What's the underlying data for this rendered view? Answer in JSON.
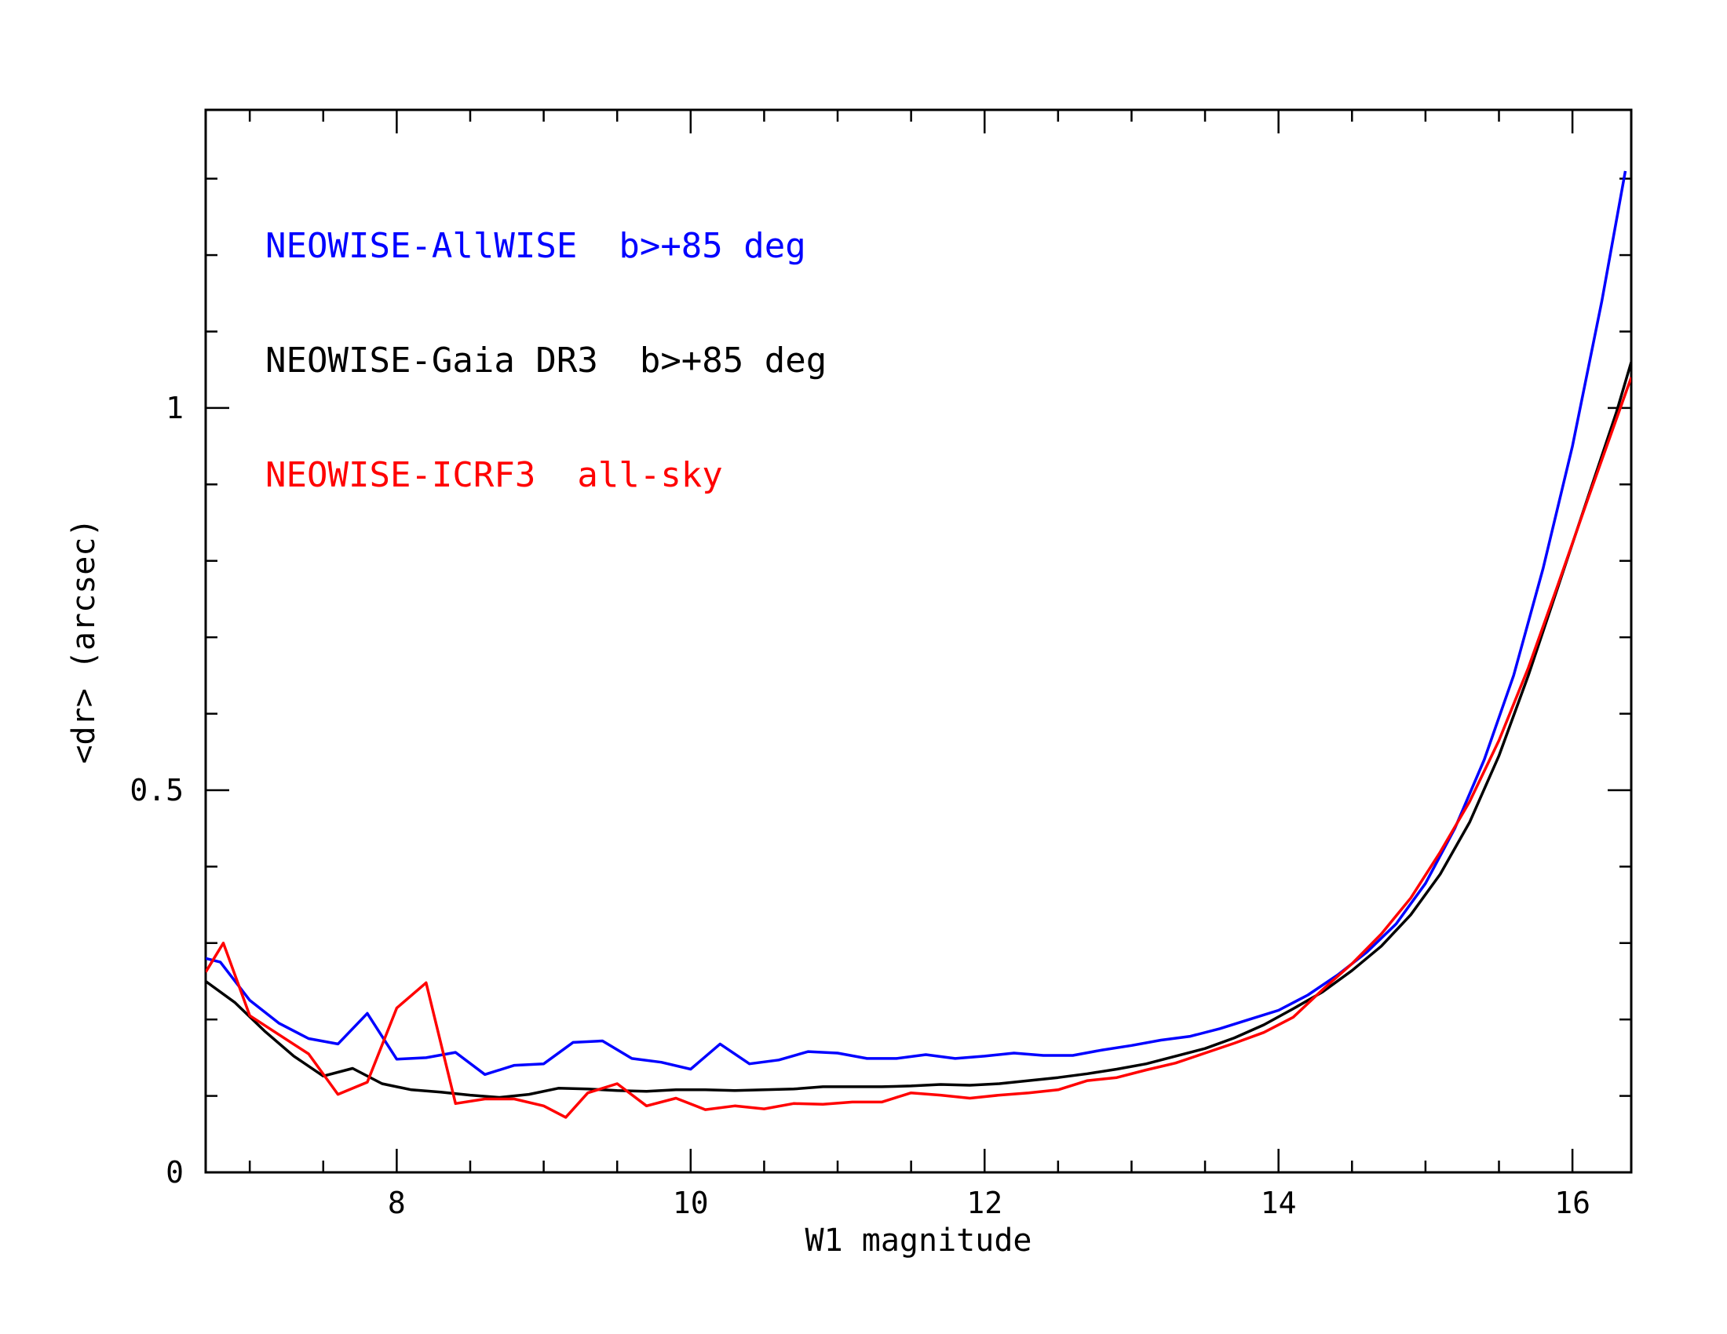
{
  "chart_data": {
    "type": "line",
    "title": "",
    "xlabel": "W1 magnitude",
    "ylabel": "<dr> (arcsec)",
    "xlim": [
      6.7,
      16.4
    ],
    "ylim": [
      0,
      1.39
    ],
    "xticks": [
      8,
      10,
      12,
      14,
      16
    ],
    "xtick_labels": [
      "8",
      "10",
      "12",
      "14",
      "16"
    ],
    "yticks": [
      0,
      0.5,
      1
    ],
    "ytick_labels": [
      "0",
      "0.5",
      "1"
    ],
    "x_minor_step": 0.5,
    "y_minor_step": 0.1,
    "grid": false,
    "legend_placement": "top-left",
    "series": [
      {
        "name": "NEOWISE-AllWISE  b>+85 deg",
        "color": "#0000ff",
        "x": [
          6.7,
          6.8,
          7.0,
          7.2,
          7.4,
          7.6,
          7.8,
          8.0,
          8.2,
          8.4,
          8.6,
          8.8,
          9.0,
          9.2,
          9.4,
          9.6,
          9.8,
          10.0,
          10.2,
          10.4,
          10.6,
          10.8,
          11.0,
          11.2,
          11.4,
          11.6,
          11.8,
          12.0,
          12.2,
          12.4,
          12.6,
          12.8,
          13.0,
          13.2,
          13.4,
          13.6,
          13.8,
          14.0,
          14.2,
          14.4,
          14.6,
          14.8,
          15.0,
          15.2,
          15.4,
          15.6,
          15.8,
          16.0,
          16.2,
          16.36
        ],
        "y": [
          0.28,
          0.275,
          0.225,
          0.195,
          0.175,
          0.168,
          0.208,
          0.148,
          0.15,
          0.157,
          0.128,
          0.14,
          0.142,
          0.17,
          0.172,
          0.149,
          0.144,
          0.135,
          0.168,
          0.142,
          0.147,
          0.158,
          0.156,
          0.149,
          0.149,
          0.154,
          0.149,
          0.152,
          0.156,
          0.153,
          0.153,
          0.16,
          0.166,
          0.173,
          0.178,
          0.188,
          0.2,
          0.212,
          0.232,
          0.258,
          0.288,
          0.325,
          0.378,
          0.45,
          0.54,
          0.65,
          0.79,
          0.95,
          1.14,
          1.31
        ]
      },
      {
        "name": "NEOWISE-Gaia DR3  b>+85 deg",
        "color": "#000000",
        "x": [
          6.7,
          6.9,
          7.1,
          7.3,
          7.5,
          7.7,
          7.9,
          8.1,
          8.3,
          8.5,
          8.7,
          8.9,
          9.1,
          9.3,
          9.5,
          9.7,
          9.9,
          10.1,
          10.3,
          10.5,
          10.7,
          10.9,
          11.1,
          11.3,
          11.5,
          11.7,
          11.9,
          12.1,
          12.3,
          12.5,
          12.7,
          12.9,
          13.1,
          13.3,
          13.5,
          13.7,
          13.9,
          14.1,
          14.3,
          14.5,
          14.7,
          14.9,
          15.1,
          15.3,
          15.5,
          15.7,
          15.9,
          16.1,
          16.3,
          16.4
        ],
        "y": [
          0.25,
          0.222,
          0.185,
          0.152,
          0.126,
          0.136,
          0.116,
          0.108,
          0.105,
          0.101,
          0.098,
          0.102,
          0.11,
          0.109,
          0.107,
          0.106,
          0.108,
          0.108,
          0.107,
          0.108,
          0.109,
          0.112,
          0.112,
          0.112,
          0.113,
          0.115,
          0.114,
          0.116,
          0.12,
          0.124,
          0.129,
          0.135,
          0.142,
          0.152,
          0.162,
          0.176,
          0.193,
          0.214,
          0.236,
          0.264,
          0.296,
          0.337,
          0.39,
          0.458,
          0.545,
          0.65,
          0.765,
          0.88,
          0.995,
          1.06
        ]
      },
      {
        "name": "NEOWISE-ICRF3  all-sky",
        "color": "#ff0000",
        "x": [
          6.7,
          6.82,
          7.0,
          7.2,
          7.4,
          7.6,
          7.8,
          8.0,
          8.2,
          8.4,
          8.6,
          8.8,
          9.0,
          9.15,
          9.3,
          9.5,
          9.7,
          9.9,
          10.1,
          10.3,
          10.5,
          10.7,
          10.9,
          11.1,
          11.3,
          11.5,
          11.7,
          11.9,
          12.1,
          12.3,
          12.5,
          12.7,
          12.9,
          13.1,
          13.3,
          13.5,
          13.7,
          13.9,
          14.1,
          14.3,
          14.5,
          14.7,
          14.9,
          15.1,
          15.3,
          15.5,
          15.7,
          15.9,
          16.1,
          16.4
        ],
        "y": [
          0.262,
          0.3,
          0.205,
          0.18,
          0.155,
          0.102,
          0.118,
          0.215,
          0.248,
          0.09,
          0.096,
          0.096,
          0.087,
          0.072,
          0.104,
          0.116,
          0.087,
          0.097,
          0.082,
          0.087,
          0.083,
          0.09,
          0.089,
          0.092,
          0.092,
          0.104,
          0.101,
          0.097,
          0.101,
          0.104,
          0.108,
          0.12,
          0.124,
          0.134,
          0.143,
          0.156,
          0.169,
          0.183,
          0.203,
          0.239,
          0.273,
          0.312,
          0.359,
          0.419,
          0.485,
          0.565,
          0.66,
          0.768,
          0.878,
          1.04
        ]
      }
    ]
  }
}
